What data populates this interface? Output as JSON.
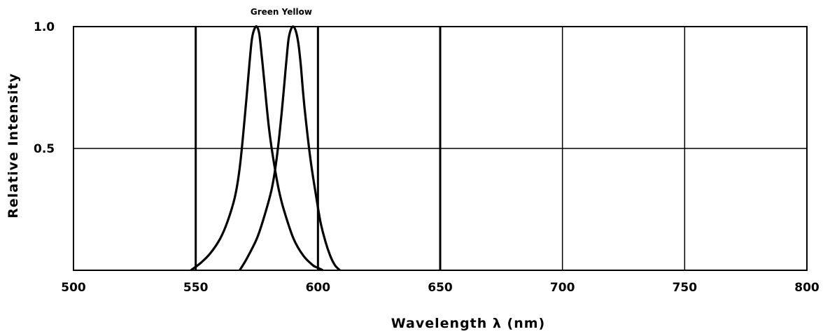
{
  "chart_data": {
    "type": "line",
    "xlabel": "Wavelength λ (nm)",
    "ylabel": "Relative Intensity",
    "xlim": [
      500,
      800
    ],
    "ylim": [
      0,
      1.0
    ],
    "x_ticks": [
      "500",
      "550",
      "600",
      "650",
      "700",
      "750",
      "800"
    ],
    "y_ticks": [
      {
        "label": "1.0",
        "value": 1.0
      },
      {
        "label": "0.5",
        "value": 0.5
      }
    ],
    "annotations": [
      {
        "text": "Green Yellow",
        "x": 585,
        "y": 1.0
      }
    ],
    "series": [
      {
        "x": [
          548,
          552,
          556,
          560,
          563,
          566,
          568,
          570,
          572,
          573,
          574,
          575,
          576,
          577,
          578,
          580,
          582,
          584,
          586,
          590,
          594,
          598,
          600,
          602
        ],
        "y": [
          0.0,
          0.03,
          0.07,
          0.13,
          0.2,
          0.3,
          0.42,
          0.62,
          0.85,
          0.95,
          0.99,
          1.0,
          0.97,
          0.88,
          0.78,
          0.58,
          0.44,
          0.33,
          0.25,
          0.13,
          0.06,
          0.02,
          0.01,
          0.0
        ]
      },
      {
        "x": [
          568,
          571,
          575,
          578,
          581,
          583,
          585,
          587,
          588,
          589,
          590,
          591,
          592,
          593,
          594,
          595,
          597,
          599,
          601,
          603,
          605,
          607,
          609
        ],
        "y": [
          0.0,
          0.05,
          0.13,
          0.22,
          0.33,
          0.45,
          0.63,
          0.85,
          0.95,
          0.99,
          1.0,
          0.98,
          0.93,
          0.84,
          0.72,
          0.62,
          0.45,
          0.32,
          0.2,
          0.12,
          0.06,
          0.02,
          0.0
        ]
      }
    ]
  }
}
